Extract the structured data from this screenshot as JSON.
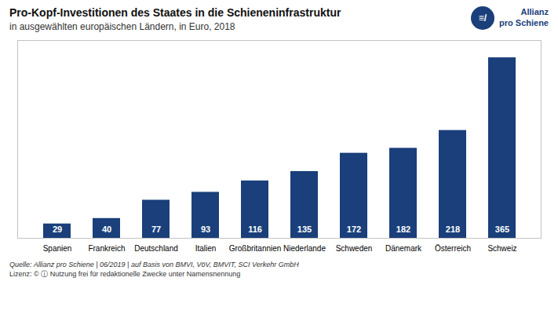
{
  "chart_data": {
    "type": "bar",
    "title": "Pro-Kopf-Investitionen des Staates in die Schieneninfrastruktur",
    "subtitle": "in ausgewählten europäischen Ländern, in Euro, 2018",
    "categories": [
      "Spanien",
      "Frankreich",
      "Deutschland",
      "Italien",
      "Großbritannien",
      "Niederlande",
      "Schweden",
      "Dänemark",
      "Österreich",
      "Schweiz"
    ],
    "values": [
      29,
      40,
      77,
      93,
      116,
      135,
      172,
      182,
      218,
      365
    ],
    "color": "#1a3f7a",
    "ylim": [
      0,
      400
    ],
    "tick_labels": "x",
    "data_labels": true,
    "grid": false,
    "annotations": [
      "≡/",
      "Allianz",
      "pro Schiene"
    ],
    "source": [
      "Quelle: Allianz pro Schiene | 06/2019 | auf Basis von BMVI, VöV, BMVIT, SCI Verkehr GmbH",
      "Lizenz: © ⓘ Nutzung frei für redaktionelle Zwecke unter Namensnennung"
    ]
  }
}
